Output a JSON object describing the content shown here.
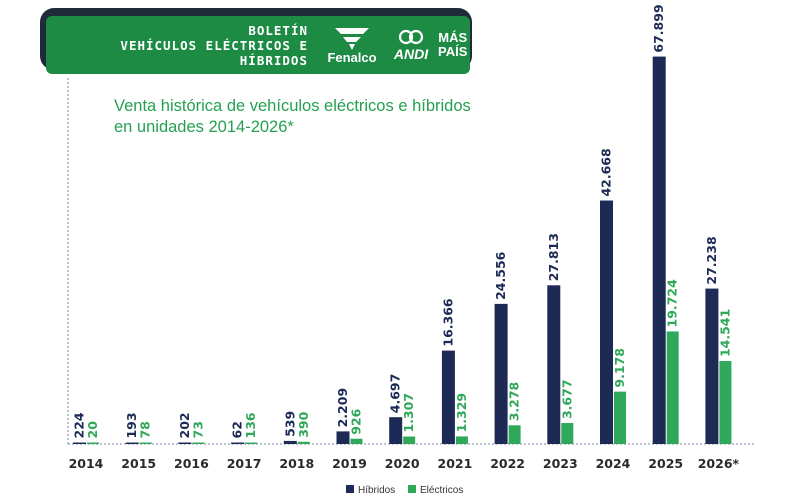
{
  "header": {
    "title_lines": [
      "BOLETÍN",
      "VEHÍCULOS ELÉCTRICOS E",
      "HÍBRIDOS"
    ],
    "logos": {
      "fenalco": "Fenalco",
      "andi": "ANDI",
      "maspais_lines": [
        "MÁS",
        "PAÍS"
      ]
    }
  },
  "chart_data": {
    "type": "bar",
    "title_lines": [
      "Venta histórica de   vehículos eléctricos e híbridos",
      "en unidades 2014-2026*"
    ],
    "categories": [
      "2014",
      "2015",
      "2016",
      "2017",
      "2018",
      "2019",
      "2020",
      "2021",
      "2022",
      "2023",
      "2024",
      "2025",
      "2026*"
    ],
    "series": [
      {
        "name": "Híbridos",
        "color": "#1c2a55",
        "values": [
          224,
          193,
          202,
          62,
          539,
          2209,
          4697,
          16366,
          24556,
          27813,
          42668,
          67899,
          27238
        ],
        "labels": [
          "224",
          "193",
          "202",
          "62",
          "539",
          "2.209",
          "4.697",
          "16.366",
          "24.556",
          "27.813",
          "42.668",
          "67.899",
          "27.238"
        ]
      },
      {
        "name": "Eléctricos",
        "color": "#2fa85a",
        "values": [
          20,
          78,
          73,
          136,
          390,
          926,
          1307,
          1329,
          3278,
          3677,
          9178,
          19724,
          14541
        ],
        "labels": [
          "20",
          "78",
          "73",
          "136",
          "390",
          "926",
          "1.307",
          "1.329",
          "3.278",
          "3.677",
          "9.178",
          "19.724",
          "14.541"
        ]
      }
    ],
    "ylim": [
      0,
      68000
    ],
    "legend_position": "bottom-center",
    "grid": false
  }
}
